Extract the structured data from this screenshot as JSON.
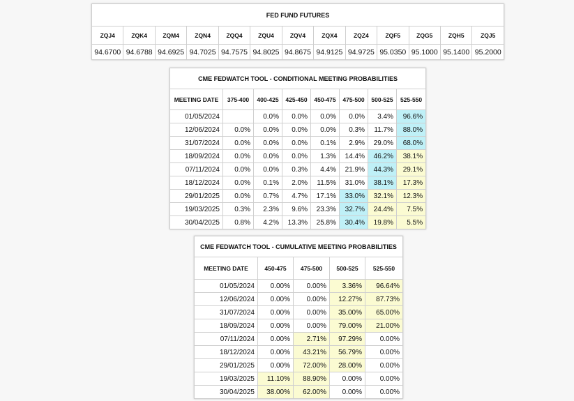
{
  "futures": {
    "title": "FED FUND FUTURES",
    "headers": [
      "ZQJ4",
      "ZQK4",
      "ZQM4",
      "ZQN4",
      "ZQQ4",
      "ZQU4",
      "ZQV4",
      "ZQX4",
      "ZQZ4",
      "ZQF5",
      "ZQG5",
      "ZQH5",
      "ZQJ5"
    ],
    "values": [
      "94.6700",
      "94.6788",
      "94.6925",
      "94.7025",
      "94.7575",
      "94.8025",
      "94.8675",
      "94.9125",
      "94.9725",
      "95.0350",
      "95.1000",
      "95.1400",
      "95.2000"
    ]
  },
  "conditional": {
    "title": "CME FEDWATCH TOOL - CONDITIONAL MEETING PROBABILITIES",
    "headers": [
      "MEETING DATE",
      "375-400",
      "400-425",
      "425-450",
      "450-475",
      "475-500",
      "500-525",
      "525-550"
    ],
    "rows": [
      [
        "01/05/2024",
        null,
        "0.0%",
        "0.0%",
        "0.0%",
        "0.0%",
        "3.4%",
        "96.6%"
      ],
      [
        "12/06/2024",
        "0.0%",
        "0.0%",
        "0.0%",
        "0.0%",
        "0.3%",
        "11.7%",
        "88.0%"
      ],
      [
        "31/07/2024",
        "0.0%",
        "0.0%",
        "0.0%",
        "0.1%",
        "2.9%",
        "29.0%",
        "68.0%"
      ],
      [
        "18/09/2024",
        "0.0%",
        "0.0%",
        "0.0%",
        "1.3%",
        "14.4%",
        "46.2%",
        "38.1%"
      ],
      [
        "07/11/2024",
        "0.0%",
        "0.0%",
        "0.3%",
        "4.4%",
        "21.9%",
        "44.3%",
        "29.1%"
      ],
      [
        "18/12/2024",
        "0.0%",
        "0.1%",
        "2.0%",
        "11.5%",
        "31.0%",
        "38.1%",
        "17.3%"
      ],
      [
        "29/01/2025",
        "0.0%",
        "0.7%",
        "4.7%",
        "17.1%",
        "33.0%",
        "32.1%",
        "12.3%"
      ],
      [
        "19/03/2025",
        "0.3%",
        "2.3%",
        "9.6%",
        "23.3%",
        "32.7%",
        "24.4%",
        "7.5%"
      ],
      [
        "30/04/2025",
        "0.8%",
        "4.2%",
        "13.3%",
        "25.8%",
        "30.4%",
        "19.8%",
        "5.5%"
      ]
    ]
  },
  "cumulative": {
    "title": "CME FEDWATCH TOOL - CUMULATIVE MEETING PROBABILITIES",
    "headers": [
      "MEETING DATE",
      "450-475",
      "475-500",
      "500-525",
      "525-550"
    ],
    "rows": [
      [
        "01/05/2024",
        "0.00%",
        "0.00%",
        "3.36%",
        "96.64%"
      ],
      [
        "12/06/2024",
        "0.00%",
        "0.00%",
        "12.27%",
        "87.73%"
      ],
      [
        "31/07/2024",
        "0.00%",
        "0.00%",
        "35.00%",
        "65.00%"
      ],
      [
        "18/09/2024",
        "0.00%",
        "0.00%",
        "79.00%",
        "21.00%"
      ],
      [
        "07/11/2024",
        "0.00%",
        "2.71%",
        "97.29%",
        "0.00%"
      ],
      [
        "18/12/2024",
        "0.00%",
        "43.21%",
        "56.79%",
        "0.00%"
      ],
      [
        "29/01/2025",
        "0.00%",
        "72.00%",
        "28.00%",
        "0.00%"
      ],
      [
        "19/03/2025",
        "11.10%",
        "88.90%",
        "0.00%",
        "0.00%"
      ],
      [
        "30/04/2025",
        "38.00%",
        "62.00%",
        "0.00%",
        "0.00%"
      ]
    ]
  }
}
